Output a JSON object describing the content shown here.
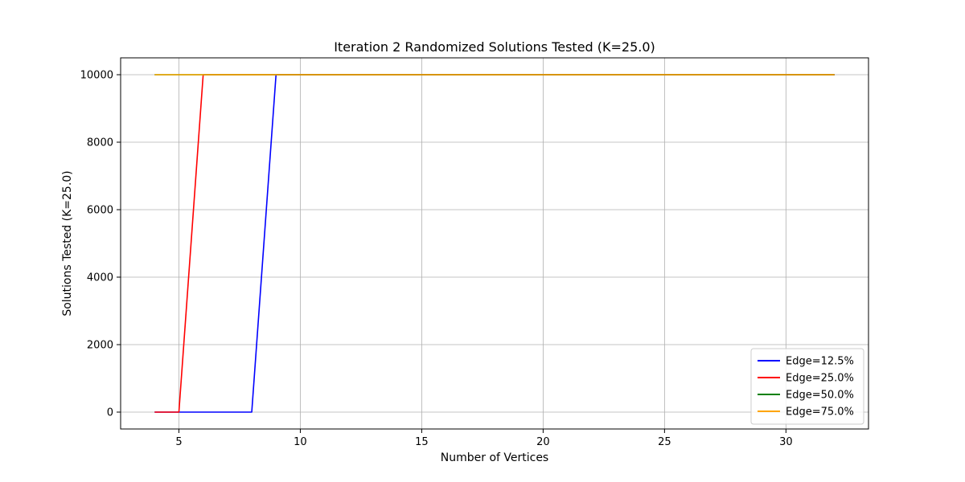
{
  "chart_data": {
    "type": "line",
    "title": "Iteration 2 Randomized Solutions Tested (K=25.0)",
    "xlabel": "Number of Vertices",
    "ylabel": "Solutions Tested (K=25.0)",
    "xlim": [
      2.6,
      33.4
    ],
    "ylim": [
      -500,
      10500
    ],
    "xticks": [
      5,
      10,
      15,
      20,
      25,
      30
    ],
    "yticks": [
      0,
      2000,
      4000,
      6000,
      8000,
      10000
    ],
    "grid": true,
    "legend_position": "lower-right",
    "series": [
      {
        "name": "Edge=12.5%",
        "color": "#0000ff",
        "x": [
          4,
          5,
          6,
          7,
          8,
          9,
          10,
          11,
          12,
          13,
          14,
          15,
          16,
          17,
          18,
          19,
          20,
          21,
          22,
          23,
          24,
          25,
          26,
          27,
          28,
          29,
          30,
          31,
          32
        ],
        "y": [
          0,
          0,
          0,
          0,
          0,
          10000,
          10000,
          10000,
          10000,
          10000,
          10000,
          10000,
          10000,
          10000,
          10000,
          10000,
          10000,
          10000,
          10000,
          10000,
          10000,
          10000,
          10000,
          10000,
          10000,
          10000,
          10000,
          10000,
          10000
        ]
      },
      {
        "name": "Edge=25.0%",
        "color": "#ff0000",
        "x": [
          4,
          5,
          6,
          7,
          8,
          9,
          10,
          11,
          12,
          13,
          14,
          15,
          16,
          17,
          18,
          19,
          20,
          21,
          22,
          23,
          24,
          25,
          26,
          27,
          28,
          29,
          30,
          31,
          32
        ],
        "y": [
          0,
          0,
          10000,
          10000,
          10000,
          10000,
          10000,
          10000,
          10000,
          10000,
          10000,
          10000,
          10000,
          10000,
          10000,
          10000,
          10000,
          10000,
          10000,
          10000,
          10000,
          10000,
          10000,
          10000,
          10000,
          10000,
          10000,
          10000,
          10000
        ]
      },
      {
        "name": "Edge=50.0%",
        "color": "#008000",
        "x": [
          4,
          5,
          6,
          7,
          8,
          9,
          10,
          11,
          12,
          13,
          14,
          15,
          16,
          17,
          18,
          19,
          20,
          21,
          22,
          23,
          24,
          25,
          26,
          27,
          28,
          29,
          30,
          31,
          32
        ],
        "y": [
          10000,
          10000,
          10000,
          10000,
          10000,
          10000,
          10000,
          10000,
          10000,
          10000,
          10000,
          10000,
          10000,
          10000,
          10000,
          10000,
          10000,
          10000,
          10000,
          10000,
          10000,
          10000,
          10000,
          10000,
          10000,
          10000,
          10000,
          10000,
          10000
        ]
      },
      {
        "name": "Edge=75.0%",
        "color": "#ffa500",
        "x": [
          4,
          5,
          6,
          7,
          8,
          9,
          10,
          11,
          12,
          13,
          14,
          15,
          16,
          17,
          18,
          19,
          20,
          21,
          22,
          23,
          24,
          25,
          26,
          27,
          28,
          29,
          30,
          31,
          32
        ],
        "y": [
          10000,
          10000,
          10000,
          10000,
          10000,
          10000,
          10000,
          10000,
          10000,
          10000,
          10000,
          10000,
          10000,
          10000,
          10000,
          10000,
          10000,
          10000,
          10000,
          10000,
          10000,
          10000,
          10000,
          10000,
          10000,
          10000,
          10000,
          10000,
          10000
        ]
      }
    ]
  }
}
